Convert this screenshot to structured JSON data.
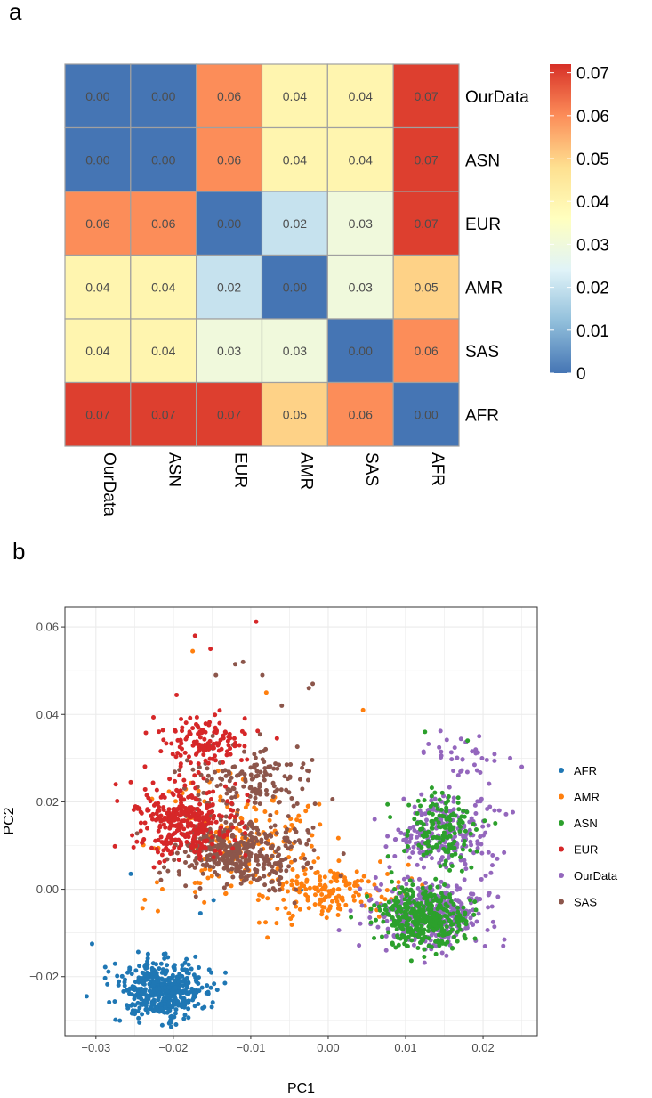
{
  "panels": {
    "a": "a",
    "b": "b"
  },
  "chart_data": [
    {
      "type": "heatmap",
      "title": "",
      "rows": [
        "OurData",
        "ASN",
        "EUR",
        "AMR",
        "SAS",
        "AFR"
      ],
      "columns": [
        "OurData",
        "ASN",
        "EUR",
        "AMR",
        "SAS",
        "AFR"
      ],
      "values": [
        [
          0.0,
          0.0,
          0.06,
          0.04,
          0.04,
          0.07
        ],
        [
          0.0,
          0.0,
          0.06,
          0.04,
          0.04,
          0.07
        ],
        [
          0.06,
          0.06,
          0.0,
          0.02,
          0.03,
          0.07
        ],
        [
          0.04,
          0.04,
          0.02,
          0.0,
          0.03,
          0.05
        ],
        [
          0.04,
          0.04,
          0.03,
          0.03,
          0.0,
          0.06
        ],
        [
          0.07,
          0.07,
          0.07,
          0.05,
          0.06,
          0.0
        ]
      ],
      "cell_labels": [
        [
          "0.00",
          "0.00",
          "0.06",
          "0.04",
          "0.04",
          "0.07"
        ],
        [
          "0.00",
          "0.00",
          "0.06",
          "0.04",
          "0.04",
          "0.07"
        ],
        [
          "0.06",
          "0.06",
          "0.00",
          "0.02",
          "0.03",
          "0.07"
        ],
        [
          "0.04",
          "0.04",
          "0.02",
          "0.00",
          "0.03",
          "0.05"
        ],
        [
          "0.04",
          "0.04",
          "0.03",
          "0.03",
          "0.00",
          "0.06"
        ],
        [
          "0.07",
          "0.07",
          "0.07",
          "0.05",
          "0.06",
          "0.00"
        ]
      ],
      "colorbar": {
        "range": [
          0,
          0.072
        ],
        "ticks": [
          0,
          0.01,
          0.02,
          0.03,
          0.04,
          0.05,
          0.06,
          0.07
        ],
        "tick_labels": [
          "0",
          "0.01",
          "0.02",
          "0.03",
          "0.04",
          "0.05",
          "0.06",
          "0.07"
        ],
        "colors": [
          "#4575b4",
          "#91bfdb",
          "#e0f3f8",
          "#ffffbf",
          "#fee090",
          "#fc8d59",
          "#d73027"
        ]
      }
    },
    {
      "type": "scatter",
      "title": "",
      "xlabel": "PC1",
      "ylabel": "PC2",
      "xlim": [
        -0.034,
        0.027
      ],
      "ylim": [
        -0.0335,
        0.0645
      ],
      "xticks": [
        -0.03,
        -0.02,
        -0.01,
        0.0,
        0.01,
        0.02
      ],
      "xtick_labels": [
        "−0.03",
        "−0.02",
        "−0.01",
        "0.00",
        "0.01",
        "0.02"
      ],
      "yticks": [
        -0.02,
        0.0,
        0.02,
        0.04,
        0.06
      ],
      "ytick_labels": [
        "−0.02",
        "0.00",
        "0.02",
        "0.04",
        "0.06"
      ],
      "grid": true,
      "legend_position": "right",
      "series": [
        {
          "name": "AFR",
          "color": "#1f77b4",
          "n": 480,
          "clusters": [
            {
              "w": 1,
              "cx": -0.0215,
              "cy": -0.0232,
              "sx": 0.0028,
              "sy": 0.0032
            }
          ],
          "extra": [
            [
              -0.0312,
              -0.0245
            ],
            [
              -0.0305,
              -0.0125
            ],
            [
              -0.0165,
              -0.0055
            ],
            [
              -0.0148,
              -0.0025
            ],
            [
              -0.0255,
              0.0035
            ],
            [
              -0.0035,
              -0.0002
            ]
          ]
        },
        {
          "name": "AMR",
          "color": "#ff7f0e",
          "n": 330,
          "clusters": [
            {
              "w": 0.55,
              "cx": -0.0115,
              "cy": 0.0105,
              "sx": 0.0055,
              "sy": 0.0075
            },
            {
              "w": 0.45,
              "cx": 0.0005,
              "cy": -0.0005,
              "sx": 0.004,
              "sy": 0.003
            }
          ],
          "extra": [
            [
              0.0045,
              0.041
            ],
            [
              -0.0175,
              0.0545
            ],
            [
              -0.008,
              0.045
            ],
            [
              -0.022,
              -0.005
            ],
            [
              0.01,
              -0.001
            ]
          ]
        },
        {
          "name": "ASN",
          "color": "#2ca02c",
          "n": 520,
          "clusters": [
            {
              "w": 0.72,
              "cx": 0.0125,
              "cy": -0.0065,
              "sx": 0.0028,
              "sy": 0.0032
            },
            {
              "w": 0.28,
              "cx": 0.0145,
              "cy": 0.013,
              "sx": 0.0025,
              "sy": 0.004
            }
          ],
          "extra": [
            [
              0.0125,
              0.036
            ],
            [
              0.018,
              0.034
            ],
            [
              0.008,
              0.0165
            ]
          ]
        },
        {
          "name": "EUR",
          "color": "#d62728",
          "n": 470,
          "clusters": [
            {
              "w": 0.72,
              "cx": -0.0185,
              "cy": 0.015,
              "sx": 0.0033,
              "sy": 0.004
            },
            {
              "w": 0.28,
              "cx": -0.016,
              "cy": 0.034,
              "sx": 0.003,
              "sy": 0.003
            }
          ],
          "extra": [
            [
              -0.0172,
              0.058
            ],
            [
              -0.0152,
              0.055
            ],
            [
              -0.0093,
              0.0612
            ],
            [
              -0.0255,
              0.0245
            ],
            [
              -0.0225,
              0.005
            ]
          ]
        },
        {
          "name": "OurData",
          "color": "#9467bd",
          "n": 700,
          "clusters": [
            {
              "w": 0.62,
              "cx": 0.0135,
              "cy": -0.006,
              "sx": 0.0035,
              "sy": 0.0035
            },
            {
              "w": 0.33,
              "cx": 0.015,
              "cy": 0.0125,
              "sx": 0.0032,
              "sy": 0.0045
            },
            {
              "w": 0.05,
              "cx": 0.018,
              "cy": 0.03,
              "sx": 0.003,
              "sy": 0.0025
            }
          ],
          "extra": [
            [
              0.025,
              0.028
            ],
            [
              0.0235,
              0.03
            ],
            [
              0.0195,
              0.035
            ],
            [
              0.0145,
              0.0362
            ],
            [
              0.006,
              0.016
            ]
          ]
        },
        {
          "name": "SAS",
          "color": "#8c564b",
          "n": 560,
          "clusters": [
            {
              "w": 0.75,
              "cx": -0.0115,
              "cy": 0.0085,
              "sx": 0.0042,
              "sy": 0.004
            },
            {
              "w": 0.25,
              "cx": -0.01,
              "cy": 0.0255,
              "sx": 0.004,
              "sy": 0.004
            }
          ],
          "extra": [
            [
              -0.002,
              0.047
            ],
            [
              -0.0025,
              0.046
            ],
            [
              -0.011,
              0.052
            ],
            [
              -0.012,
              0.0515
            ],
            [
              -0.0085,
              0.049
            ],
            [
              -0.0145,
              0.049
            ],
            [
              -0.006,
              0.042
            ]
          ]
        }
      ]
    }
  ]
}
